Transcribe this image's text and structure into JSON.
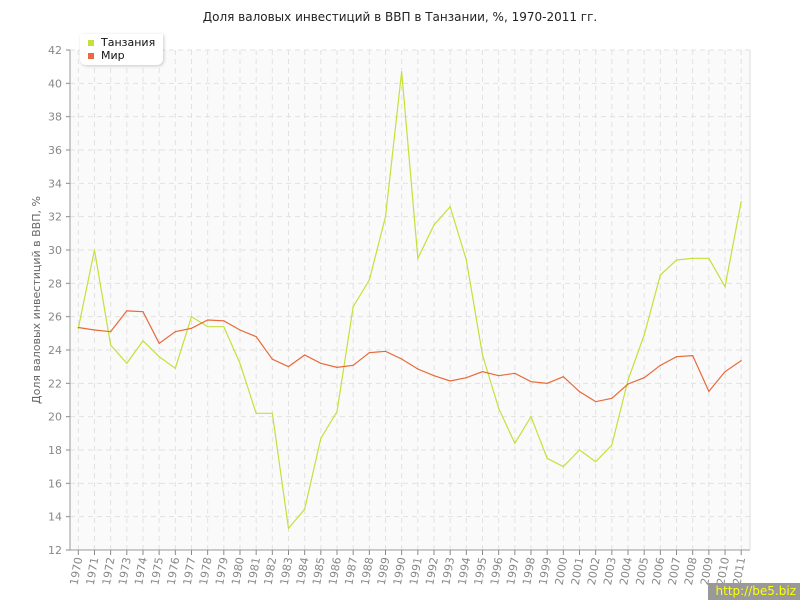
{
  "chart_data": {
    "type": "line",
    "title": "Доля валовых инвестиций в ВВП в Танзании, %, 1970-2011 гг.",
    "xlabel": "",
    "ylabel": "Доля валовых инвестиций в ВВП, %",
    "ylim": [
      12,
      42
    ],
    "yticks": [
      12,
      14,
      16,
      18,
      20,
      22,
      24,
      26,
      28,
      30,
      32,
      34,
      36,
      38,
      40,
      42
    ],
    "grid": true,
    "legend_position": "top-left",
    "x": [
      1970,
      1971,
      1972,
      1973,
      1974,
      1975,
      1976,
      1977,
      1978,
      1979,
      1980,
      1981,
      1982,
      1983,
      1984,
      1985,
      1986,
      1987,
      1988,
      1989,
      1990,
      1991,
      1992,
      1993,
      1994,
      1995,
      1996,
      1997,
      1998,
      1999,
      2000,
      2001,
      2002,
      2003,
      2004,
      2005,
      2006,
      2007,
      2008,
      2009,
      2010,
      2011
    ],
    "series": [
      {
        "name": "Танзания",
        "color": "#c5e03a",
        "values": [
          25.3,
          30.0,
          24.3,
          23.2,
          24.55,
          23.6,
          22.9,
          26.0,
          25.4,
          25.4,
          23.2,
          20.2,
          20.2,
          13.3,
          14.45,
          18.7,
          20.3,
          26.6,
          28.2,
          32.0,
          40.7,
          29.5,
          31.5,
          32.6,
          29.4,
          23.7,
          20.5,
          18.4,
          20.0,
          17.5,
          17.0,
          18.0,
          17.3,
          18.3,
          22.2,
          24.9,
          28.5,
          29.4,
          29.5,
          29.5,
          27.8,
          32.9
        ]
      },
      {
        "name": "Мир",
        "color": "#e8693a",
        "values": [
          25.35,
          25.2,
          25.1,
          26.35,
          26.3,
          24.4,
          25.1,
          25.3,
          25.8,
          25.75,
          25.2,
          24.8,
          23.45,
          23.0,
          23.7,
          23.2,
          22.96,
          23.08,
          23.84,
          23.92,
          23.46,
          22.86,
          22.46,
          22.14,
          22.34,
          22.7,
          22.46,
          22.6,
          22.1,
          22.0,
          22.4,
          21.5,
          20.9,
          21.1,
          21.96,
          22.34,
          23.08,
          23.6,
          23.66,
          21.52,
          22.7,
          23.36
        ]
      }
    ]
  },
  "watermark": "http://be5.biz"
}
